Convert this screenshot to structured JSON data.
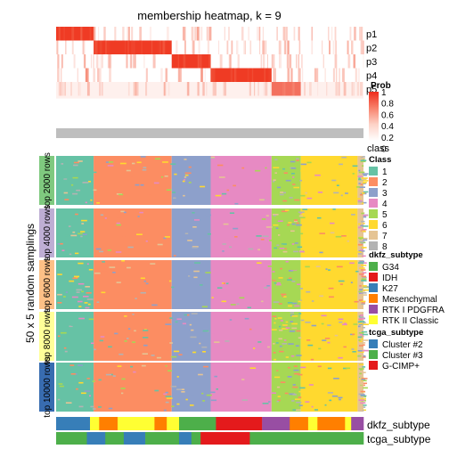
{
  "chart_data": {
    "type": "heatmap",
    "title": "membership heatmap, k = 9",
    "ylabel": "50 x 5 random samplings",
    "membership_rows": [
      "p1",
      "p2",
      "p3",
      "p4",
      "p5"
    ],
    "class_row_label": "class",
    "row_groups": [
      "top 2000 rows",
      "top 4000 rows",
      "top 6000 rows",
      "top 8000 rows",
      "top 10000 rows"
    ],
    "row_group_colors": [
      "#7fc97f",
      "#beaed4",
      "#fdc086",
      "#ffff99",
      "#386cb0"
    ],
    "annotation_rows": [
      "dkfz_subtype",
      "tcga_subtype"
    ],
    "prob_legend": {
      "title": "Prob",
      "ticks": [
        "1",
        "0.8",
        "0.6",
        "0.4",
        "0.2",
        "0"
      ],
      "colors": [
        "#ee2c1b",
        "#f8806a",
        "#fdd3c8",
        "#ffffff"
      ]
    },
    "class_legend": {
      "title": "Class",
      "items": [
        {
          "label": "1",
          "color": "#66c2a5"
        },
        {
          "label": "2",
          "color": "#fc8d62"
        },
        {
          "label": "3",
          "color": "#8da0cb"
        },
        {
          "label": "4",
          "color": "#e78ac3"
        },
        {
          "label": "5",
          "color": "#a6d854"
        },
        {
          "label": "6",
          "color": "#ffd92f"
        },
        {
          "label": "7",
          "color": "#e5c494"
        },
        {
          "label": "8",
          "color": "#b3b3b3"
        }
      ]
    },
    "dkfz_legend": {
      "title": "dkfz_subtype",
      "items": [
        {
          "label": "G34",
          "color": "#4daf4a"
        },
        {
          "label": "IDH",
          "color": "#e41a1c"
        },
        {
          "label": "K27",
          "color": "#377eb8"
        },
        {
          "label": "Mesenchymal",
          "color": "#ff7f00"
        },
        {
          "label": "RTK I PDGFRA",
          "color": "#984ea3"
        },
        {
          "label": "RTK II Classic",
          "color": "#ffff33"
        }
      ]
    },
    "tcga_legend": {
      "title": "tcga_subtype",
      "items": [
        {
          "label": "Cluster #2",
          "color": "#377eb8"
        },
        {
          "label": "Cluster #3",
          "color": "#4daf4a"
        },
        {
          "label": "G-CIMP+",
          "color": "#e41a1c"
        }
      ]
    },
    "class_blocks": [
      {
        "class": "1",
        "fraction": 0.122
      },
      {
        "class": "2",
        "fraction": 0.254
      },
      {
        "class": "3",
        "fraction": 0.127
      },
      {
        "class": "4",
        "fraction": 0.198
      },
      {
        "class": "5",
        "fraction": 0.095
      },
      {
        "class": "6",
        "fraction": 0.185
      },
      {
        "class": "7",
        "fraction": 0.019
      }
    ],
    "membership_block_order": [
      {
        "row": "p1",
        "class": "1"
      },
      {
        "row": "p2",
        "class": "2"
      },
      {
        "row": "p3",
        "class": "3"
      },
      {
        "row": "p4",
        "class": "4"
      },
      {
        "row": "p5",
        "class": "5"
      }
    ],
    "dkfz_blocks": [
      {
        "subtype": "K27",
        "fraction": 0.11
      },
      {
        "subtype": "RTK II Classic",
        "fraction": 0.03
      },
      {
        "subtype": "Mesenchymal",
        "fraction": 0.06
      },
      {
        "subtype": "RTK II Classic",
        "fraction": 0.12
      },
      {
        "subtype": "Mesenchymal",
        "fraction": 0.04
      },
      {
        "subtype": "RTK II Classic",
        "fraction": 0.04
      },
      {
        "subtype": "G34",
        "fraction": 0.12
      },
      {
        "subtype": "IDH",
        "fraction": 0.15
      },
      {
        "subtype": "RTK I PDGFRA",
        "fraction": 0.09
      },
      {
        "subtype": "Mesenchymal",
        "fraction": 0.06
      },
      {
        "subtype": "RTK II Classic",
        "fraction": 0.03
      },
      {
        "subtype": "Mesenchymal",
        "fraction": 0.09
      },
      {
        "subtype": "RTK II Classic",
        "fraction": 0.02
      },
      {
        "subtype": "RTK I PDGFRA",
        "fraction": 0.04
      }
    ],
    "tcga_blocks": [
      {
        "subtype": "Cluster #3",
        "fraction": 0.1
      },
      {
        "subtype": "Cluster #2",
        "fraction": 0.06
      },
      {
        "subtype": "Cluster #3",
        "fraction": 0.06
      },
      {
        "subtype": "Cluster #2",
        "fraction": 0.07
      },
      {
        "subtype": "Cluster #3",
        "fraction": 0.11
      },
      {
        "subtype": "Cluster #2",
        "fraction": 0.04
      },
      {
        "subtype": "Cluster #3",
        "fraction": 0.03
      },
      {
        "subtype": "G-CIMP+",
        "fraction": 0.16
      },
      {
        "subtype": "Cluster #3",
        "fraction": 0.37
      }
    ]
  }
}
